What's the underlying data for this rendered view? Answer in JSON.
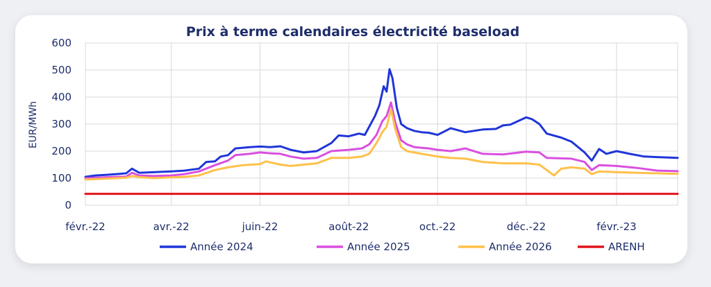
{
  "chart_data": {
    "type": "line",
    "title": "Prix à terme calendaires électricité baseload",
    "ylabel": "EUR/MWh",
    "xlabel": "",
    "ylim": [
      0,
      600
    ],
    "yticks": [
      0,
      100,
      200,
      300,
      400,
      500,
      600
    ],
    "xlim": [
      "2022-02-01",
      "2023-03-15"
    ],
    "xticks": [
      {
        "label": "févr.-22",
        "date": "2022-02-01"
      },
      {
        "label": "avr.-22",
        "date": "2022-04-01"
      },
      {
        "label": "juin-22",
        "date": "2022-06-01"
      },
      {
        "label": "août-22",
        "date": "2022-08-01"
      },
      {
        "label": "oct.-22",
        "date": "2022-10-01"
      },
      {
        "label": "déc.-22",
        "date": "2022-12-01"
      },
      {
        "label": "févr.-23",
        "date": "2023-02-01"
      }
    ],
    "grid": true,
    "legend_position": "bottom",
    "series": [
      {
        "name": "Année 2024",
        "color": "#1f35d8",
        "points": [
          [
            "2022-02-01",
            105
          ],
          [
            "2022-02-08",
            110
          ],
          [
            "2022-02-15",
            112
          ],
          [
            "2022-02-22",
            115
          ],
          [
            "2022-03-01",
            118
          ],
          [
            "2022-03-05",
            135
          ],
          [
            "2022-03-10",
            120
          ],
          [
            "2022-03-20",
            122
          ],
          [
            "2022-04-01",
            125
          ],
          [
            "2022-04-10",
            128
          ],
          [
            "2022-04-20",
            135
          ],
          [
            "2022-04-25",
            160
          ],
          [
            "2022-05-01",
            162
          ],
          [
            "2022-05-05",
            180
          ],
          [
            "2022-05-10",
            185
          ],
          [
            "2022-05-15",
            210
          ],
          [
            "2022-05-25",
            215
          ],
          [
            "2022-06-01",
            217
          ],
          [
            "2022-06-08",
            215
          ],
          [
            "2022-06-15",
            218
          ],
          [
            "2022-06-22",
            205
          ],
          [
            "2022-07-01",
            195
          ],
          [
            "2022-07-10",
            200
          ],
          [
            "2022-07-20",
            230
          ],
          [
            "2022-07-25",
            258
          ],
          [
            "2022-08-01",
            255
          ],
          [
            "2022-08-08",
            265
          ],
          [
            "2022-08-12",
            260
          ],
          [
            "2022-08-16",
            300
          ],
          [
            "2022-08-19",
            330
          ],
          [
            "2022-08-22",
            370
          ],
          [
            "2022-08-25",
            440
          ],
          [
            "2022-08-27",
            420
          ],
          [
            "2022-08-29",
            503
          ],
          [
            "2022-08-31",
            470
          ],
          [
            "2022-09-03",
            360
          ],
          [
            "2022-09-06",
            300
          ],
          [
            "2022-09-10",
            285
          ],
          [
            "2022-09-15",
            275
          ],
          [
            "2022-09-20",
            270
          ],
          [
            "2022-09-25",
            268
          ],
          [
            "2022-10-01",
            260
          ],
          [
            "2022-10-10",
            285
          ],
          [
            "2022-10-20",
            270
          ],
          [
            "2022-11-01",
            280
          ],
          [
            "2022-11-10",
            282
          ],
          [
            "2022-11-15",
            295
          ],
          [
            "2022-11-20",
            298
          ],
          [
            "2022-12-01",
            325
          ],
          [
            "2022-12-05",
            318
          ],
          [
            "2022-12-10",
            300
          ],
          [
            "2022-12-15",
            265
          ],
          [
            "2022-12-25",
            250
          ],
          [
            "2023-01-01",
            235
          ],
          [
            "2023-01-10",
            195
          ],
          [
            "2023-01-15",
            165
          ],
          [
            "2023-01-20",
            208
          ],
          [
            "2023-01-25",
            190
          ],
          [
            "2023-02-01",
            200
          ],
          [
            "2023-02-10",
            190
          ],
          [
            "2023-02-20",
            180
          ],
          [
            "2023-03-01",
            178
          ],
          [
            "2023-03-15",
            175
          ]
        ]
      },
      {
        "name": "Année 2025",
        "color": "#d94fe0",
        "points": [
          [
            "2022-02-01",
            100
          ],
          [
            "2022-02-15",
            103
          ],
          [
            "2022-03-01",
            106
          ],
          [
            "2022-03-05",
            120
          ],
          [
            "2022-03-10",
            110
          ],
          [
            "2022-03-20",
            108
          ],
          [
            "2022-04-01",
            110
          ],
          [
            "2022-04-10",
            115
          ],
          [
            "2022-04-20",
            125
          ],
          [
            "2022-05-01",
            148
          ],
          [
            "2022-05-10",
            165
          ],
          [
            "2022-05-15",
            185
          ],
          [
            "2022-05-25",
            190
          ],
          [
            "2022-06-01",
            195
          ],
          [
            "2022-06-08",
            192
          ],
          [
            "2022-06-15",
            190
          ],
          [
            "2022-06-22",
            180
          ],
          [
            "2022-07-01",
            172
          ],
          [
            "2022-07-10",
            175
          ],
          [
            "2022-07-20",
            200
          ],
          [
            "2022-08-01",
            205
          ],
          [
            "2022-08-10",
            210
          ],
          [
            "2022-08-15",
            225
          ],
          [
            "2022-08-20",
            260
          ],
          [
            "2022-08-24",
            310
          ],
          [
            "2022-08-27",
            330
          ],
          [
            "2022-08-30",
            380
          ],
          [
            "2022-09-02",
            305
          ],
          [
            "2022-09-06",
            240
          ],
          [
            "2022-09-10",
            225
          ],
          [
            "2022-09-15",
            215
          ],
          [
            "2022-09-25",
            210
          ],
          [
            "2022-10-01",
            205
          ],
          [
            "2022-10-10",
            200
          ],
          [
            "2022-10-20",
            210
          ],
          [
            "2022-11-01",
            190
          ],
          [
            "2022-11-15",
            188
          ],
          [
            "2022-12-01",
            198
          ],
          [
            "2022-12-10",
            195
          ],
          [
            "2022-12-15",
            175
          ],
          [
            "2023-01-01",
            172
          ],
          [
            "2023-01-10",
            160
          ],
          [
            "2023-01-15",
            130
          ],
          [
            "2023-01-20",
            148
          ],
          [
            "2023-02-01",
            145
          ],
          [
            "2023-02-15",
            138
          ],
          [
            "2023-03-01",
            128
          ],
          [
            "2023-03-15",
            126
          ]
        ]
      },
      {
        "name": "Année 2026",
        "color": "#ffc04a",
        "points": [
          [
            "2022-02-01",
            95
          ],
          [
            "2022-02-15",
            98
          ],
          [
            "2022-03-01",
            102
          ],
          [
            "2022-03-05",
            108
          ],
          [
            "2022-03-10",
            104
          ],
          [
            "2022-03-20",
            100
          ],
          [
            "2022-04-01",
            103
          ],
          [
            "2022-04-10",
            105
          ],
          [
            "2022-04-20",
            110
          ],
          [
            "2022-05-01",
            130
          ],
          [
            "2022-05-10",
            140
          ],
          [
            "2022-05-20",
            148
          ],
          [
            "2022-06-01",
            152
          ],
          [
            "2022-06-05",
            162
          ],
          [
            "2022-06-15",
            150
          ],
          [
            "2022-06-22",
            145
          ],
          [
            "2022-07-01",
            150
          ],
          [
            "2022-07-10",
            155
          ],
          [
            "2022-07-20",
            175
          ],
          [
            "2022-08-01",
            175
          ],
          [
            "2022-08-10",
            180
          ],
          [
            "2022-08-15",
            190
          ],
          [
            "2022-08-20",
            230
          ],
          [
            "2022-08-24",
            270
          ],
          [
            "2022-08-27",
            290
          ],
          [
            "2022-08-30",
            355
          ],
          [
            "2022-09-02",
            280
          ],
          [
            "2022-09-06",
            215
          ],
          [
            "2022-09-10",
            200
          ],
          [
            "2022-09-20",
            190
          ],
          [
            "2022-10-01",
            180
          ],
          [
            "2022-10-10",
            175
          ],
          [
            "2022-10-20",
            172
          ],
          [
            "2022-11-01",
            160
          ],
          [
            "2022-11-15",
            155
          ],
          [
            "2022-12-01",
            155
          ],
          [
            "2022-12-10",
            150
          ],
          [
            "2022-12-15",
            130
          ],
          [
            "2022-12-20",
            110
          ],
          [
            "2022-12-25",
            135
          ],
          [
            "2023-01-01",
            140
          ],
          [
            "2023-01-10",
            135
          ],
          [
            "2023-01-15",
            115
          ],
          [
            "2023-01-20",
            125
          ],
          [
            "2023-02-01",
            122
          ],
          [
            "2023-02-15",
            120
          ],
          [
            "2023-03-01",
            118
          ],
          [
            "2023-03-15",
            116
          ]
        ]
      },
      {
        "name": "ARENH",
        "color": "#e3131b",
        "points": [
          [
            "2022-02-01",
            42
          ],
          [
            "2023-03-15",
            42
          ]
        ]
      }
    ]
  }
}
